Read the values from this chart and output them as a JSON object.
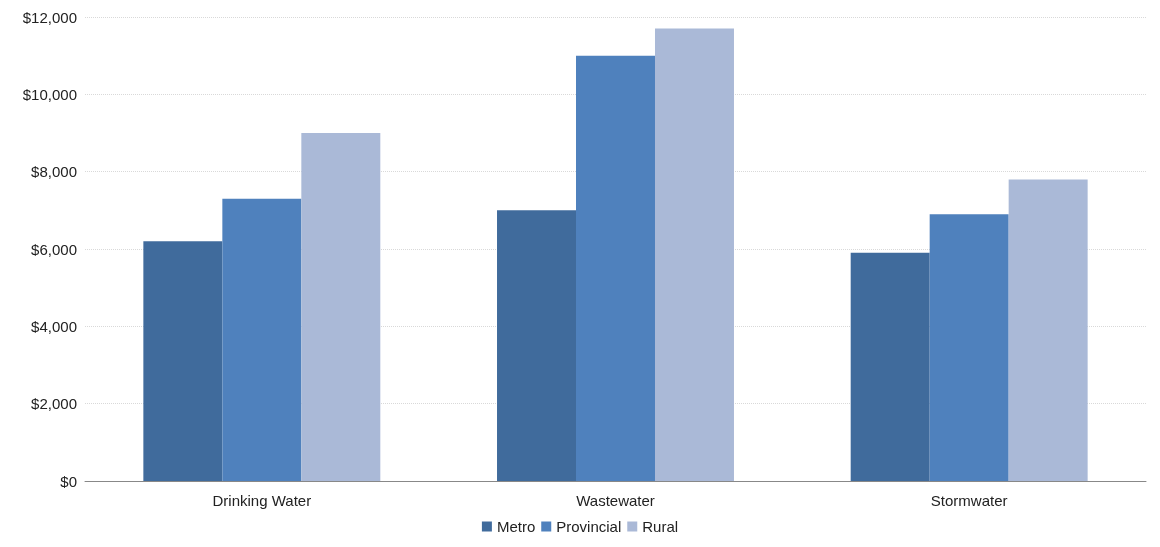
{
  "chart_data": {
    "type": "bar",
    "categories": [
      "Drinking Water",
      "Wastewater",
      "Stormwater"
    ],
    "series": [
      {
        "name": "Metro",
        "color": "#406b9c",
        "values": [
          6200,
          7000,
          5900
        ]
      },
      {
        "name": "Provincial",
        "color": "#4f81bd",
        "values": [
          7300,
          11000,
          6900
        ]
      },
      {
        "name": "Rural",
        "color": "#aab9d7",
        "values": [
          9000,
          11700,
          7800
        ]
      }
    ],
    "ylim": [
      0,
      12000
    ],
    "yticks": [
      {
        "value": 0,
        "label": "$0"
      },
      {
        "value": 2000,
        "label": "$2,000"
      },
      {
        "value": 4000,
        "label": "$4,000"
      },
      {
        "value": 6000,
        "label": "$6,000"
      },
      {
        "value": 8000,
        "label": "$8,000"
      },
      {
        "value": 10000,
        "label": "$10,000"
      },
      {
        "value": 12000,
        "label": "$12,000"
      }
    ],
    "grid": "y",
    "legend": "bottom",
    "marker": "square"
  }
}
